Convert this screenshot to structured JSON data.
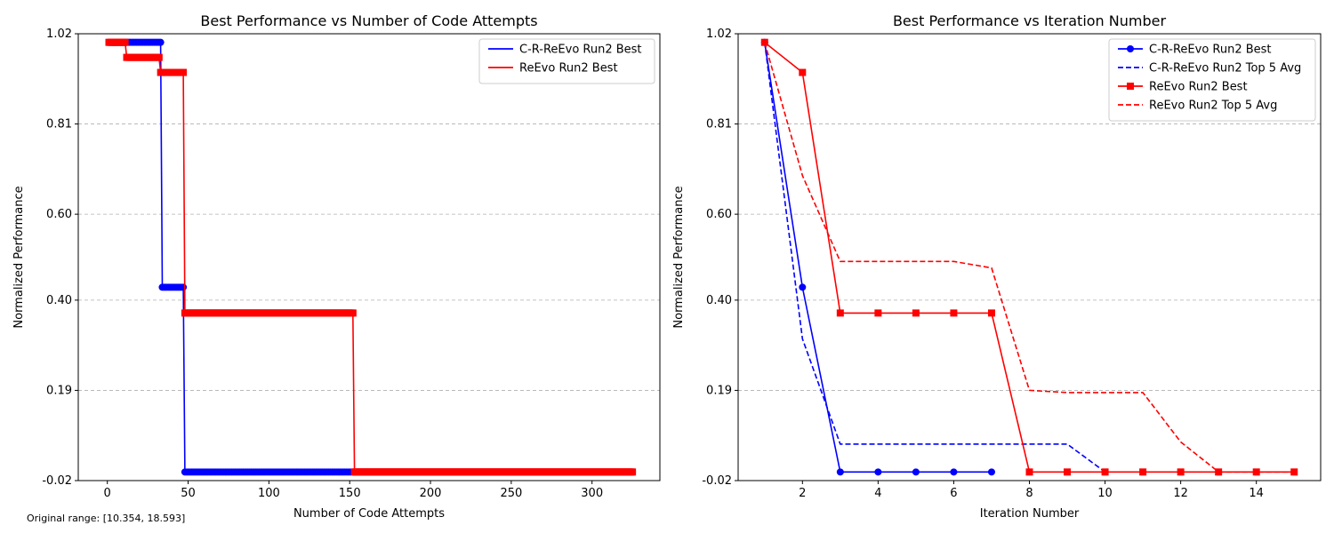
{
  "footnote": "Original range: [10.354, 18.593]",
  "chart_data": [
    {
      "type": "line",
      "title": "Best Performance vs Number of Code Attempts",
      "xlabel": "Number of Code Attempts",
      "ylabel": "Normalized Performance",
      "xlim": [
        -18,
        342
      ],
      "ylim": [
        -0.02,
        1.02
      ],
      "xticks": [
        0,
        50,
        100,
        150,
        200,
        250,
        300
      ],
      "yticks": [
        -0.02,
        0.19,
        0.4,
        0.6,
        0.81,
        1.02
      ],
      "ytick_labels": [
        "-0.02",
        "0.19",
        "0.40",
        "0.60",
        "0.81",
        "1.02"
      ],
      "grid": "y dashed",
      "legend": "top-right",
      "series": [
        {
          "name": "C-R-ReEvo Run2 Best",
          "color": "#0000ff",
          "marker": "circle",
          "step_x": [
            1,
            33,
            34,
            47,
            48,
            325
          ],
          "step_y": [
            1.0,
            1.0,
            0.43,
            0.43,
            0.0,
            0.0
          ],
          "x_range": [
            1,
            325
          ]
        },
        {
          "name": "ReEvo Run2 Best",
          "color": "#ff0000",
          "marker": "square",
          "step_x": [
            1,
            11,
            12,
            32,
            33,
            47,
            48,
            152,
            153,
            325
          ],
          "step_y": [
            1.0,
            1.0,
            0.965,
            0.965,
            0.93,
            0.93,
            0.37,
            0.37,
            0.0,
            0.0
          ],
          "x_range": [
            1,
            325
          ]
        }
      ]
    },
    {
      "type": "line",
      "title": "Best Performance vs Iteration Number",
      "xlabel": "Iteration Number",
      "ylabel": "Normalized Performance",
      "xlim": [
        0.3,
        15.7
      ],
      "ylim": [
        -0.02,
        1.02
      ],
      "xticks": [
        2,
        4,
        6,
        8,
        10,
        12,
        14
      ],
      "yticks": [
        -0.02,
        0.19,
        0.4,
        0.6,
        0.81,
        1.02
      ],
      "ytick_labels": [
        "-0.02",
        "0.19",
        "0.40",
        "0.60",
        "0.81",
        "1.02"
      ],
      "grid": "y dashed",
      "legend": "top-right",
      "x": [
        1,
        2,
        3,
        4,
        5,
        6,
        7,
        8,
        9,
        10,
        11,
        12,
        13,
        14,
        15
      ],
      "series": [
        {
          "name": "C-R-ReEvo Run2 Best",
          "color": "#0000ff",
          "style": "solid",
          "marker": "circle",
          "x": [
            1,
            2,
            3,
            4,
            5,
            6,
            7
          ],
          "values": [
            1.0,
            0.43,
            0.0,
            0.0,
            0.0,
            0.0,
            0.0
          ]
        },
        {
          "name": "C-R-ReEvo Run2 Top 5 Avg",
          "color": "#0000ff",
          "style": "dashed",
          "marker": "none",
          "x": [
            1,
            2,
            3,
            4,
            5,
            6,
            7,
            8,
            9,
            10
          ],
          "values": [
            1.0,
            0.31,
            0.065,
            0.065,
            0.065,
            0.065,
            0.065,
            0.065,
            0.065,
            0.0
          ]
        },
        {
          "name": "ReEvo Run2 Best",
          "color": "#ff0000",
          "style": "solid",
          "marker": "square",
          "x": [
            1,
            2,
            3,
            4,
            5,
            6,
            7,
            8,
            9,
            10,
            11,
            12,
            13,
            14,
            15
          ],
          "values": [
            1.0,
            0.93,
            0.37,
            0.37,
            0.37,
            0.37,
            0.37,
            0.0,
            0.0,
            0.0,
            0.0,
            0.0,
            0.0,
            0.0,
            0.0
          ]
        },
        {
          "name": "ReEvo Run2 Top 5 Avg",
          "color": "#ff0000",
          "style": "dashed",
          "marker": "none",
          "x": [
            1,
            2,
            3,
            4,
            5,
            6,
            7,
            8,
            9,
            10,
            11,
            12,
            13,
            14,
            15
          ],
          "values": [
            1.0,
            0.69,
            0.49,
            0.49,
            0.49,
            0.49,
            0.475,
            0.19,
            0.185,
            0.185,
            0.185,
            0.07,
            0.0,
            0.0,
            0.0
          ]
        }
      ]
    }
  ]
}
